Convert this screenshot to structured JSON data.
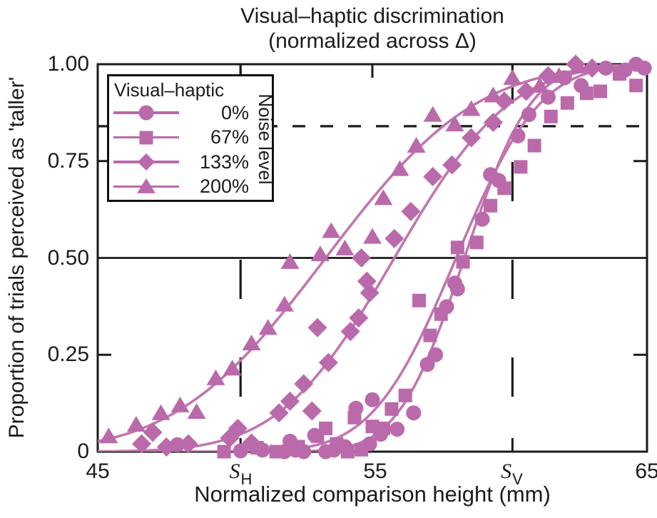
{
  "chart_data": {
    "type": "scatter",
    "title_line1": "Visual–haptic discrimination",
    "title_line2": "(normalized across Δ)",
    "xlabel": "Normalized comparison height (mm)",
    "ylabel": "Proportion of trials perceived as 'taller'",
    "xlim": [
      45,
      65
    ],
    "ylim": [
      0,
      1
    ],
    "x_ticks": [
      {
        "label": "45",
        "value": 45
      },
      {
        "label": "S",
        "sub": "H",
        "value": 50.2
      },
      {
        "label": "55",
        "value": 55
      },
      {
        "label": "S",
        "sub": "V",
        "value": 60.1
      },
      {
        "label": "65",
        "value": 65
      }
    ],
    "y_ticks": [
      {
        "label": "0",
        "value": 0
      },
      {
        "label": "0.25",
        "value": 0.25
      },
      {
        "label": "0.50",
        "value": 0.5
      },
      {
        "label": "0.75",
        "value": 0.75
      },
      {
        "label": "1.00",
        "value": 1.0
      }
    ],
    "reference_lines": {
      "solid_horizontal": 0.5,
      "dashed_horizontal": 0.84,
      "dashed_vertical": [
        50.2,
        60.1
      ]
    },
    "colors": {
      "series": "#ba6aaa",
      "curve": "#c176af",
      "axis": "#1b1b1b"
    },
    "legend": {
      "title": "Visual–haptic",
      "side_label": "Noise level",
      "items": [
        "0%",
        "67%",
        "133%",
        "200%"
      ]
    },
    "series": [
      {
        "name": "0%",
        "marker": "circle",
        "fit_cumulative_gaussian": {
          "mu": 58.35,
          "sigma": 1.9
        },
        "points": [
          [
            47.9,
            0.018
          ],
          [
            50.2,
            0.002
          ],
          [
            51.0,
            0.004
          ],
          [
            51.8,
            0.0
          ],
          [
            52.0,
            0.027
          ],
          [
            52.2,
            0.004
          ],
          [
            52.5,
            0.0
          ],
          [
            52.9,
            0.042
          ],
          [
            53.3,
            0.0
          ],
          [
            53.6,
            0.004
          ],
          [
            54.0,
            0.013
          ],
          [
            54.4,
            0.112
          ],
          [
            54.9,
            0.02
          ],
          [
            55.0,
            0.134
          ],
          [
            55.3,
            0.045
          ],
          [
            55.9,
            0.058
          ],
          [
            56.5,
            0.1
          ],
          [
            57.0,
            0.225
          ],
          [
            57.3,
            0.25
          ],
          [
            57.7,
            0.374
          ],
          [
            58.0,
            0.435
          ],
          [
            58.1,
            0.42
          ],
          [
            59.0,
            0.6
          ],
          [
            59.3,
            0.715
          ],
          [
            59.6,
            0.7
          ],
          [
            60.3,
            0.815
          ],
          [
            60.7,
            0.87
          ],
          [
            61.4,
            0.915
          ],
          [
            62.0,
            0.965
          ],
          [
            62.6,
            0.945
          ],
          [
            63.5,
            0.99
          ],
          [
            64.2,
            0.985
          ],
          [
            64.6,
            1.0
          ],
          [
            64.9,
            0.99
          ]
        ]
      },
      {
        "name": "67%",
        "marker": "square",
        "fit_cumulative_gaussian": {
          "mu": 58.05,
          "sigma": 2.4
        },
        "points": [
          [
            49.6,
            0.0
          ],
          [
            50.8,
            0.01
          ],
          [
            51.5,
            0.0
          ],
          [
            52.3,
            0.013
          ],
          [
            53.0,
            0.04
          ],
          [
            53.3,
            0.06
          ],
          [
            53.7,
            0.02
          ],
          [
            54.1,
            0.0
          ],
          [
            54.35,
            0.088
          ],
          [
            54.6,
            0.005
          ],
          [
            55.0,
            0.065
          ],
          [
            55.4,
            0.06
          ],
          [
            55.7,
            0.11
          ],
          [
            56.2,
            0.145
          ],
          [
            56.7,
            0.39
          ],
          [
            57.1,
            0.3
          ],
          [
            57.5,
            0.355
          ],
          [
            58.1,
            0.527
          ],
          [
            58.3,
            0.49
          ],
          [
            58.8,
            0.54
          ],
          [
            59.3,
            0.635
          ],
          [
            59.8,
            0.68
          ],
          [
            60.4,
            0.735
          ],
          [
            60.9,
            0.79
          ],
          [
            61.5,
            0.865
          ],
          [
            62.1,
            0.9
          ],
          [
            62.8,
            0.925
          ],
          [
            63.3,
            0.93
          ],
          [
            64.0,
            0.975
          ],
          [
            64.6,
            0.945
          ]
        ]
      },
      {
        "name": "133%",
        "marker": "diamond",
        "fit_cumulative_gaussian": {
          "mu": 55.8,
          "sigma": 3.3
        },
        "points": [
          [
            46.6,
            0.02
          ],
          [
            47.0,
            0.05
          ],
          [
            47.5,
            0.012
          ],
          [
            48.3,
            0.02
          ],
          [
            49.8,
            0.035
          ],
          [
            50.1,
            0.06
          ],
          [
            50.6,
            0.022
          ],
          [
            51.6,
            0.1
          ],
          [
            52.0,
            0.13
          ],
          [
            52.5,
            0.175
          ],
          [
            52.8,
            0.105
          ],
          [
            53.0,
            0.32
          ],
          [
            53.4,
            0.23
          ],
          [
            54.2,
            0.31
          ],
          [
            54.5,
            0.345
          ],
          [
            54.6,
            0.5
          ],
          [
            54.8,
            0.44
          ],
          [
            54.9,
            0.41
          ],
          [
            55.8,
            0.55
          ],
          [
            56.4,
            0.62
          ],
          [
            57.2,
            0.71
          ],
          [
            57.9,
            0.74
          ],
          [
            58.6,
            0.81
          ],
          [
            59.4,
            0.85
          ],
          [
            59.8,
            0.905
          ],
          [
            60.6,
            0.93
          ],
          [
            61.4,
            0.97
          ],
          [
            62.4,
            1.0
          ],
          [
            63.0,
            0.99
          ]
        ]
      },
      {
        "name": "200%",
        "marker": "triangle",
        "fit_cumulative_gaussian": {
          "mu": 53.3,
          "sigma": 4.3
        },
        "points": [
          [
            45.4,
            0.04
          ],
          [
            46.4,
            0.07
          ],
          [
            47.3,
            0.1
          ],
          [
            48.0,
            0.12
          ],
          [
            48.6,
            0.103
          ],
          [
            49.3,
            0.19
          ],
          [
            49.9,
            0.215
          ],
          [
            50.6,
            0.28
          ],
          [
            51.2,
            0.32
          ],
          [
            51.8,
            0.38
          ],
          [
            52.0,
            0.49
          ],
          [
            53.1,
            0.51
          ],
          [
            53.5,
            0.57
          ],
          [
            54.0,
            0.525
          ],
          [
            55.0,
            0.555
          ],
          [
            55.4,
            0.655
          ],
          [
            56.0,
            0.73
          ],
          [
            56.6,
            0.79
          ],
          [
            57.2,
            0.87
          ],
          [
            58.0,
            0.845
          ],
          [
            58.6,
            0.885
          ],
          [
            59.4,
            0.92
          ],
          [
            60.1,
            0.965
          ],
          [
            61.1,
            0.945
          ],
          [
            61.8,
            0.97
          ],
          [
            62.5,
            0.995
          ]
        ]
      }
    ]
  }
}
